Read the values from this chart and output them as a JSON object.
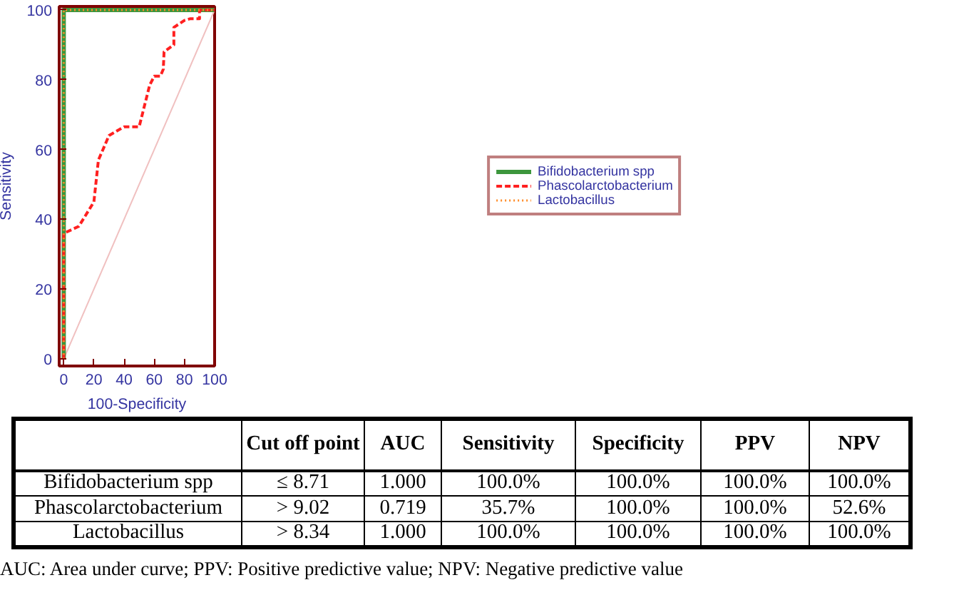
{
  "chart_data": {
    "type": "line",
    "xlabel": "100-Specificity",
    "ylabel": "Sensitivity",
    "xlim": [
      -3,
      100
    ],
    "ylim": [
      -2,
      101
    ],
    "xticks": [
      0,
      20,
      40,
      60,
      80,
      100
    ],
    "yticks": [
      0,
      20,
      40,
      60,
      80,
      100
    ],
    "grid": false,
    "legend": "right",
    "marker": "none",
    "series": [
      {
        "name": "Bifidobacterium spp",
        "color": "#3c963c",
        "line_style": "solid",
        "x": [
          0,
          0,
          100
        ],
        "values": [
          0,
          100,
          100
        ]
      },
      {
        "name": "Phascolarctobacterium",
        "color": "#ff2020",
        "line_style": "dashed",
        "x": [
          0,
          0,
          10,
          20,
          23,
          30,
          40,
          50,
          57,
          60,
          64,
          66,
          66.5,
          73,
          73,
          80,
          84,
          90,
          90,
          100
        ],
        "values": [
          0,
          36,
          38,
          45,
          57,
          64,
          66.5,
          66.5,
          78.5,
          81,
          81,
          83,
          88,
          90,
          95,
          97,
          97.5,
          97.5,
          100,
          100
        ]
      },
      {
        "name": "Lactobacillus",
        "color": "#ff8c28",
        "line_style": "dotted",
        "x": [
          0,
          0,
          100
        ],
        "values": [
          0,
          100,
          100
        ]
      },
      {
        "color": "#f0c0c0",
        "line_style": "solid",
        "x": [
          0,
          100
        ],
        "values": [
          0,
          100
        ]
      }
    ],
    "annotations": [
      "Cut off point",
      "AUC",
      "Sensitivity",
      "Specificity",
      "PPV",
      "NPV",
      "Bifidobacterium spp",
      "≤ 8.71",
      "1.000",
      "100.0%",
      "100.0%",
      "100.0%",
      "100.0%",
      "Phascolarctobacterium",
      "> 9.02",
      "0.719",
      "35.7%",
      "100.0%",
      "100.0%",
      "52.6%",
      "Lactobacillus",
      "> 8.34",
      "1.000",
      "100.0%",
      "100.0%",
      "100.0%",
      "100.0%",
      "AUC: Area under curve; PPV: Positive predictive value; NPV: Negative predictive value"
    ]
  }
}
